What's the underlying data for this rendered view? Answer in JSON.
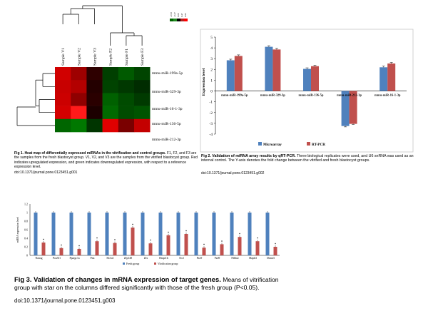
{
  "fig1": {
    "samples": [
      "Sample V1",
      "Sample V2",
      "Sample V3",
      "Sample F2",
      "Sample F1",
      "Sample F3"
    ],
    "mirnas": [
      "mmu-miR-199a-5p",
      "mmu-miR-329-3p",
      "mmu-miR-16-1-3p",
      "mmu-miR-136-5p",
      "mmu-miR-212-3p"
    ],
    "legend_labels": [
      "-0.93",
      "-0.47",
      "0.00",
      "0.47",
      "0.93"
    ],
    "legend_colors": [
      "#006400",
      "#228b22",
      "#000000",
      "#b22222",
      "#ff0000"
    ],
    "cells": [
      [
        "#d10000",
        "#9e0000",
        "#2e0000",
        "#003f00",
        "#005a00",
        "#004400"
      ],
      [
        "#c80000",
        "#b30000",
        "#240000",
        "#004300",
        "#003800",
        "#002c00"
      ],
      [
        "#cc0000",
        "#8f0000",
        "#2a0000",
        "#006100",
        "#004b00",
        "#003a00"
      ],
      [
        "#d40000",
        "#ff1a1a",
        "#1c0000",
        "#006a00",
        "#004c00",
        "#005400"
      ],
      [
        "#006600",
        "#007800",
        "#003500",
        "#e00000",
        "#7a0000",
        "#c40000"
      ]
    ],
    "caption_bold": "Fig 1. Heat map of differentially expressed miRNAs in the vitrification and control groups.",
    "caption_rest": " F1, F2, and F3 are the samples from the fresh blastocyst group. V1, V2, and V3 are the samples from the vitrified blastocyst group. Red indicates upregulated expression, and green indicates downregulated expression, with respect to a reference expression level.",
    "doi": "doi:10.1371/journal.pone.0123451.g001"
  },
  "fig2": {
    "caption_bold": "Fig 2. Validation of miRNA array results by qRT-PCR.",
    "caption_rest": " Three biological replicates were used, and U6 snRNA was used as an internal control. The Y-axis denotes the fold change between the vitrified and fresh blastocyst groups.",
    "doi": "doi:10.1371/journal.pone.0123451.g002"
  },
  "fig3": {
    "caption_bold": "Fig 3. Validation of changes in mRNA expression of target genes.",
    "caption_rest": " Means of vitrification group with star on the columns differed significantly with those of the fresh group (P<0.05).",
    "doi": "doi:10.1371/journal.pone.0123451.g003"
  },
  "chart_data": [
    {
      "type": "bar",
      "categories": [
        "mmu-miR-199a-5p",
        "mmu-miR-329-3p",
        "mmu-miR-136-5p",
        "mmu-miR-212-3p",
        "mmu-miR-16-1-3p"
      ],
      "series": [
        {
          "name": "Microarray",
          "values": [
            2.85,
            4.1,
            2.05,
            -3.25,
            2.2
          ],
          "color": "#4f81bd"
        },
        {
          "name": "RT-PCR",
          "values": [
            3.25,
            3.85,
            2.3,
            -3.05,
            2.55
          ],
          "color": "#c0504d"
        }
      ],
      "errors": [
        [
          0.1,
          0.1,
          0.1,
          0.08,
          0.1
        ],
        [
          0.1,
          0.1,
          0.1,
          0.05,
          0.1
        ]
      ],
      "ylabel": "Expression level",
      "ylim": [
        -4,
        5
      ],
      "yticks": [
        "5",
        "4",
        "3",
        "2",
        "1",
        "0",
        "-1",
        "-2",
        "-3",
        "-4"
      ],
      "legend_placement": "bottom"
    },
    {
      "type": "bar",
      "categories": [
        "Nanog",
        "Pou5f1",
        "Ppargc1a",
        "Pnn",
        "Slc3a1",
        "Zfp148",
        "Zfx",
        "Bmpr1b",
        "Ercl",
        "Pax9",
        "Fzd9",
        "Nfkbiz",
        "Mapk3",
        "Dnmt3"
      ],
      "series": [
        {
          "name": "Fresh group",
          "values": [
            1,
            1,
            1,
            1,
            1,
            1,
            1,
            1,
            1,
            1,
            1,
            1,
            1,
            1
          ],
          "color": "#4f81bd"
        },
        {
          "name": "Vitrification group",
          "values": [
            0.3,
            0.17,
            0.15,
            0.33,
            0.29,
            0.65,
            0.28,
            0.47,
            0.5,
            0.18,
            0.26,
            0.43,
            0.33,
            0.2
          ],
          "color": "#c0504d"
        }
      ],
      "ylabel": "mRNA expression level",
      "ylim": [
        0,
        1.2
      ],
      "yticks": [
        "1.2",
        "1",
        "0.8",
        "0.6",
        "0.4",
        "0.2",
        "0"
      ],
      "star_label": "*",
      "legend_placement": "bottom"
    }
  ]
}
